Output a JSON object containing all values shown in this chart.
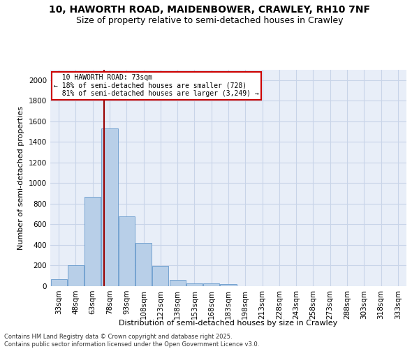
{
  "title1": "10, HAWORTH ROAD, MAIDENBOWER, CRAWLEY, RH10 7NF",
  "title2": "Size of property relative to semi-detached houses in Crawley",
  "xlabel": "Distribution of semi-detached houses by size in Crawley",
  "ylabel": "Number of semi-detached properties",
  "categories": [
    "33sqm",
    "48sqm",
    "63sqm",
    "78sqm",
    "93sqm",
    "108sqm",
    "123sqm",
    "138sqm",
    "153sqm",
    "168sqm",
    "183sqm",
    "198sqm",
    "213sqm",
    "228sqm",
    "243sqm",
    "258sqm",
    "273sqm",
    "288sqm",
    "303sqm",
    "318sqm",
    "333sqm"
  ],
  "values": [
    70,
    200,
    870,
    1530,
    680,
    420,
    195,
    60,
    30,
    25,
    20,
    0,
    0,
    0,
    0,
    0,
    0,
    0,
    0,
    0,
    0
  ],
  "bar_color": "#b8cfe8",
  "bar_edge_color": "#6699cc",
  "marker_label": "10 HAWORTH ROAD: 73sqm",
  "smaller_pct": "18%",
  "smaller_n": "728",
  "larger_pct": "81%",
  "larger_n": "3,249",
  "annotation_box_color": "#cc0000",
  "vline_color": "#990000",
  "ylim": [
    0,
    2100
  ],
  "yticks": [
    0,
    200,
    400,
    600,
    800,
    1000,
    1200,
    1400,
    1600,
    1800,
    2000
  ],
  "grid_color": "#c8d4e8",
  "background_color": "#e8eef8",
  "footer": "Contains HM Land Registry data © Crown copyright and database right 2025.\nContains public sector information licensed under the Open Government Licence v3.0.",
  "title_fontsize": 10,
  "subtitle_fontsize": 9,
  "axis_fontsize": 8,
  "tick_fontsize": 7.5,
  "footer_fontsize": 6
}
